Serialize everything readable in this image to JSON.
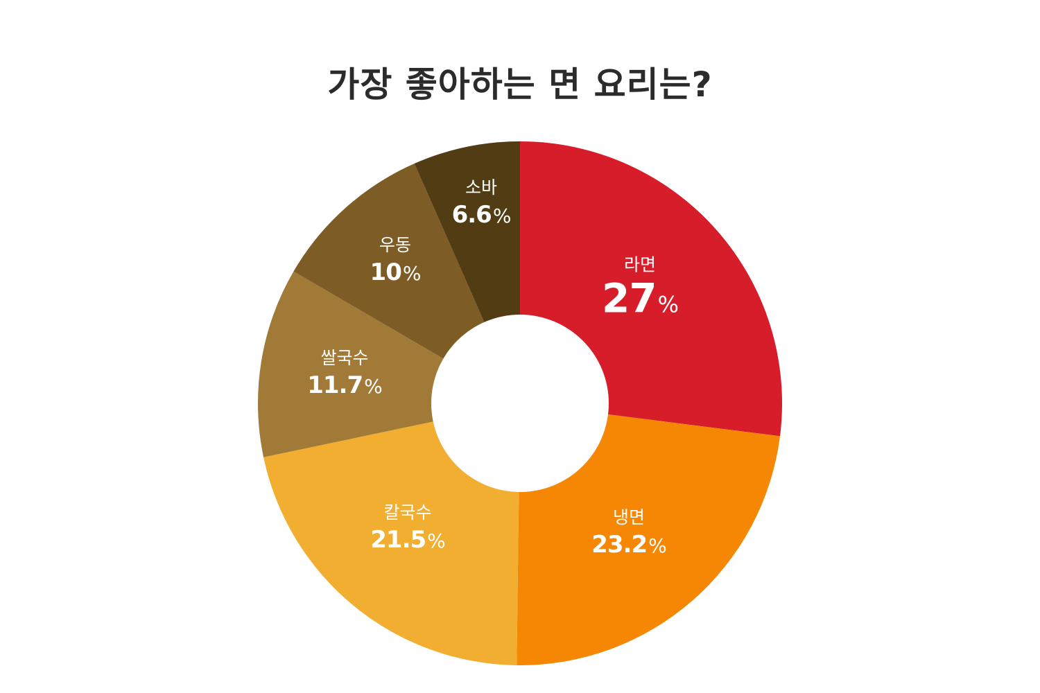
{
  "title": "가장 좋아하는 면 요리는?",
  "chart_data": {
    "type": "pie",
    "donut": true,
    "title": "가장 좋아하는 면 요리는?",
    "categories": [
      "라면",
      "냉면",
      "칼국수",
      "쌀국수",
      "우동",
      "소바"
    ],
    "values": [
      27,
      23.2,
      21.5,
      11.7,
      10,
      6.6
    ],
    "display_values": [
      "27",
      "23.2",
      "21.5",
      "11.7",
      "10",
      "6.6"
    ],
    "unit": "%",
    "colors": [
      "#d71c2a",
      "#f68705",
      "#f1ae31",
      "#a07a36",
      "#7d5c25",
      "#523c13"
    ],
    "start_angle": "12 o'clock, clockwise",
    "legend": "none (labels inside slices)"
  },
  "slices": [
    {
      "name": "라면",
      "value": "27",
      "unit": "%"
    },
    {
      "name": "냉면",
      "value": "23.2",
      "unit": "%"
    },
    {
      "name": "칼국수",
      "value": "21.5",
      "unit": "%"
    },
    {
      "name": "쌀국수",
      "value": "11.7",
      "unit": "%"
    },
    {
      "name": "우동",
      "value": "10",
      "unit": "%"
    },
    {
      "name": "소바",
      "value": "6.6",
      "unit": "%"
    }
  ]
}
